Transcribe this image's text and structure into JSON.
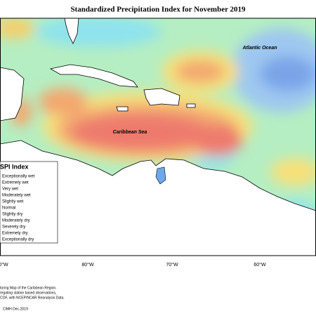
{
  "title": "Standardized Precipitation Index for November 2019",
  "labels": {
    "atlantic": "Atlantic Ocean",
    "caribbean": "Caribbean Sea"
  },
  "legend": {
    "title": "SPI Index",
    "items": [
      "Exceptionally wet",
      "Extremely wet",
      "Very wet",
      "Moderately wet",
      "Slightly wet",
      "Normal",
      "Slightly dry",
      "Moderately dry",
      "Severely dry",
      "Extremely dry",
      "Exceptionally dry"
    ]
  },
  "longitudes": [
    "0°W",
    "80°W",
    "70°W",
    "60°W"
  ],
  "footnotes": [
    "toring Map of the Caribbean Region.",
    "regating station based observations,",
    "COF, with NCEP/NCAR Reanalysis Data."
  ],
  "credit": "CIMH Dec-2019"
}
